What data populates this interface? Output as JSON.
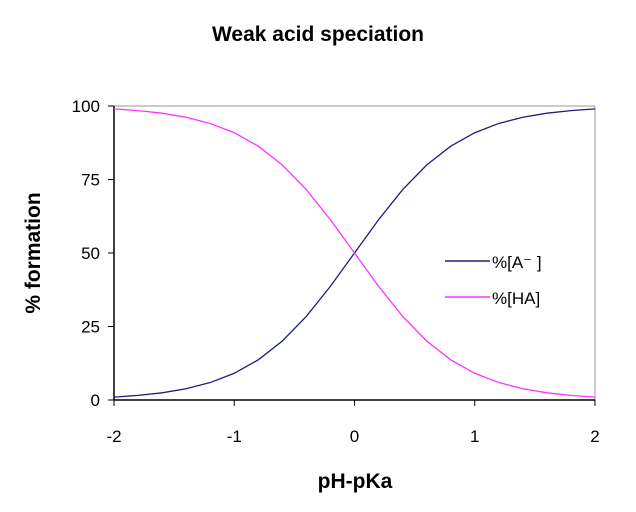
{
  "chart_data": {
    "type": "line",
    "title": "Weak acid speciation",
    "xlabel": "pH-pKa",
    "ylabel": "% formation",
    "xlim": [
      -2,
      2
    ],
    "ylim": [
      0,
      100
    ],
    "xticks": [
      "-2",
      "-1",
      "0",
      "1",
      "2"
    ],
    "yticks": [
      "0",
      "25",
      "50",
      "75",
      "100"
    ],
    "grid": false,
    "legend_position": "right",
    "x": [
      -2,
      -1.8,
      -1.6,
      -1.4,
      -1.2,
      -1,
      -0.8,
      -0.6,
      -0.4,
      -0.2,
      0,
      0.2,
      0.4,
      0.6,
      0.8,
      1,
      1.2,
      1.4,
      1.6,
      1.8,
      2
    ],
    "series": [
      {
        "name": "%[A⁻ ]",
        "color": "#1f1f7a",
        "values": [
          0.99,
          1.56,
          2.45,
          3.83,
          5.93,
          9.09,
          13.68,
          20.07,
          28.47,
          38.69,
          50,
          61.31,
          71.53,
          79.93,
          86.32,
          90.91,
          94.07,
          96.17,
          97.55,
          98.44,
          99.01
        ]
      },
      {
        "name": "%[HA]",
        "color": "#ff33ff",
        "values": [
          99.01,
          98.44,
          97.55,
          96.17,
          94.07,
          90.91,
          86.32,
          79.93,
          71.53,
          61.31,
          50,
          38.69,
          28.47,
          20.07,
          13.68,
          9.09,
          5.93,
          3.83,
          2.45,
          1.56,
          0.99
        ]
      }
    ]
  }
}
